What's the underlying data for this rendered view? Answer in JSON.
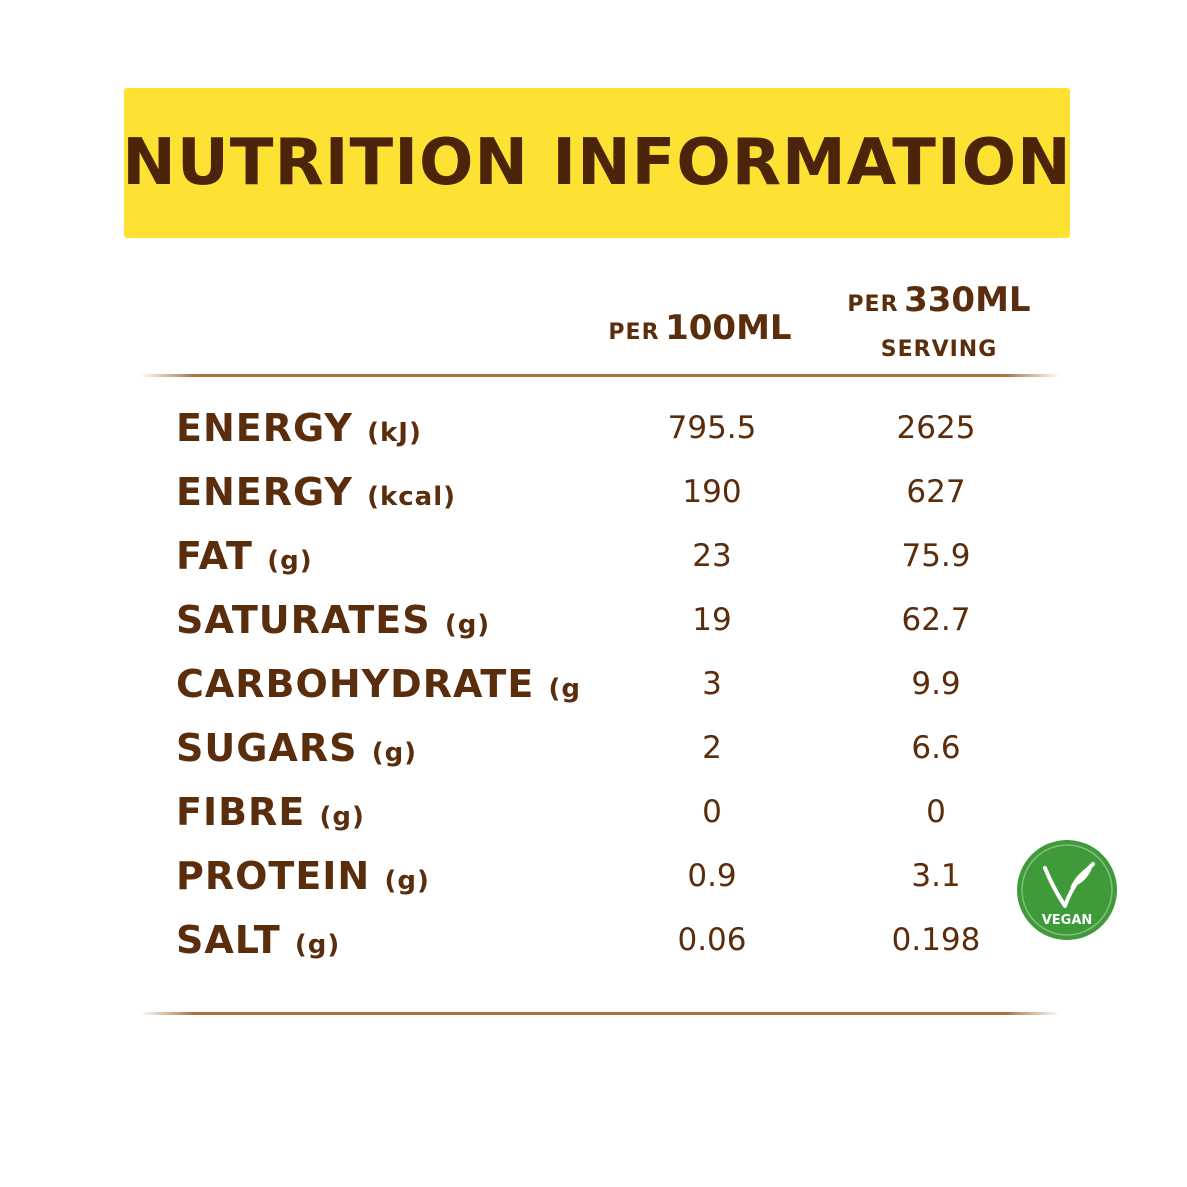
{
  "title": "NUTRITION INFORMATION",
  "columns": {
    "per_100": {
      "prefix": "PER",
      "value": "100ML"
    },
    "per_330": {
      "prefix": "PER",
      "value": "330ML",
      "suffix": "SERVING"
    }
  },
  "rows": [
    {
      "name": "ENERGY",
      "unit": "(kJ)",
      "per_100": "795.5",
      "per_330": "2625"
    },
    {
      "name": "ENERGY",
      "unit": "(kcal)",
      "per_100": "190",
      "per_330": "627"
    },
    {
      "name": "FAT",
      "unit": "(g)",
      "per_100": "23",
      "per_330": "75.9"
    },
    {
      "name": "SATURATES",
      "unit": "(g)",
      "per_100": "19",
      "per_330": "62.7"
    },
    {
      "name": "CARBOHYDRATE",
      "unit": "(g",
      "per_100": "3",
      "per_330": "9.9"
    },
    {
      "name": "SUGARS",
      "unit": "(g)",
      "per_100": "2",
      "per_330": "6.6"
    },
    {
      "name": "FIBRE",
      "unit": "(g)",
      "per_100": "0",
      "per_330": "0"
    },
    {
      "name": "PROTEIN",
      "unit": "(g)",
      "per_100": "0.9",
      "per_330": "3.1"
    },
    {
      "name": "SALT",
      "unit": "(g)",
      "per_100": "0.06",
      "per_330": "0.198"
    }
  ],
  "badge": {
    "label": "VEGAN",
    "color": "#3f9a3a"
  },
  "colors": {
    "banner": "#fde133",
    "text": "#5a2d0c",
    "rule": "#a8733f"
  }
}
